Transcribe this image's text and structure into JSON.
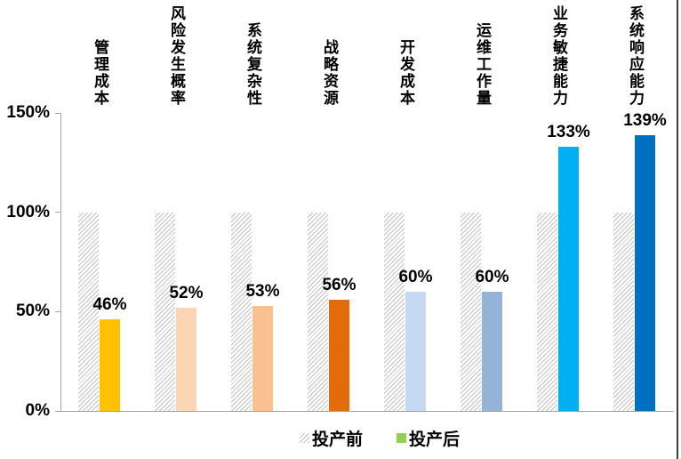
{
  "chart_data": {
    "type": "bar",
    "title": "",
    "categories": [
      "管理成本",
      "风险发生概率",
      "系统复杂性",
      "战略资源",
      "开发成本",
      "运维工作量",
      "业务敏捷能力",
      "系统响应能力"
    ],
    "series": [
      {
        "name": "投产前",
        "values": [
          100,
          100,
          100,
          100,
          100,
          100,
          100,
          100
        ],
        "style": "gray-hatch"
      },
      {
        "name": "投产后",
        "values": [
          46,
          52,
          53,
          56,
          60,
          60,
          133,
          139
        ],
        "colors": [
          "#FFC000",
          "#FCD5B4",
          "#FAC090",
          "#E36C0A",
          "#C5D9F1",
          "#95B3D7",
          "#00B0F0",
          "#0070C0"
        ]
      }
    ],
    "data_labels": [
      "46%",
      "52%",
      "53%",
      "56%",
      "60%",
      "60%",
      "133%",
      "139%"
    ],
    "yticks": [
      "0%",
      "50%",
      "100%",
      "150%"
    ],
    "ytick_values": [
      0,
      50,
      100,
      150
    ],
    "ylim": [
      0,
      150
    ],
    "grid": false,
    "legend_position": "bottom"
  },
  "legend": {
    "before": "投产前",
    "after": "投产后",
    "before_swatch": "gray-hatch",
    "after_swatch_color": "#92D050"
  },
  "frame": {
    "right_border_color": "#3b3b3b",
    "axis_color": "#a6a6a6"
  }
}
